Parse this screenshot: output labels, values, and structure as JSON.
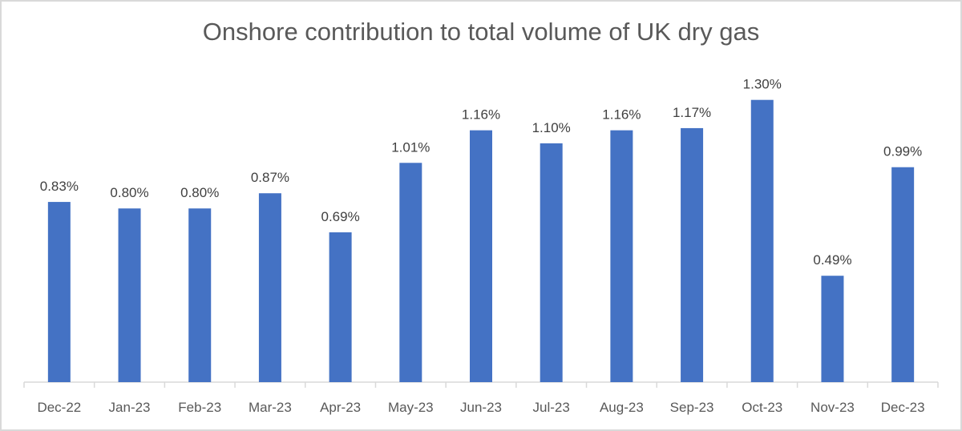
{
  "chart_data": {
    "type": "bar",
    "title": "Onshore contribution to total volume of UK dry gas",
    "categories": [
      "Dec-22",
      "Jan-23",
      "Feb-23",
      "Mar-23",
      "Apr-23",
      "May-23",
      "Jun-23",
      "Jul-23",
      "Aug-23",
      "Sep-23",
      "Oct-23",
      "Nov-23",
      "Dec-23"
    ],
    "values": [
      0.83,
      0.8,
      0.8,
      0.87,
      0.69,
      1.01,
      1.16,
      1.1,
      1.16,
      1.17,
      1.3,
      0.49,
      0.99
    ],
    "data_labels": [
      "0.83%",
      "0.80%",
      "0.80%",
      "0.87%",
      "0.69%",
      "1.01%",
      "1.16%",
      "1.10%",
      "1.16%",
      "1.17%",
      "1.30%",
      "0.49%",
      "0.99%"
    ],
    "unit": "%",
    "xlabel": "",
    "ylabel": "",
    "ylim": [
      0,
      1.45
    ],
    "grid": false,
    "bar_color": "#4472C4"
  }
}
